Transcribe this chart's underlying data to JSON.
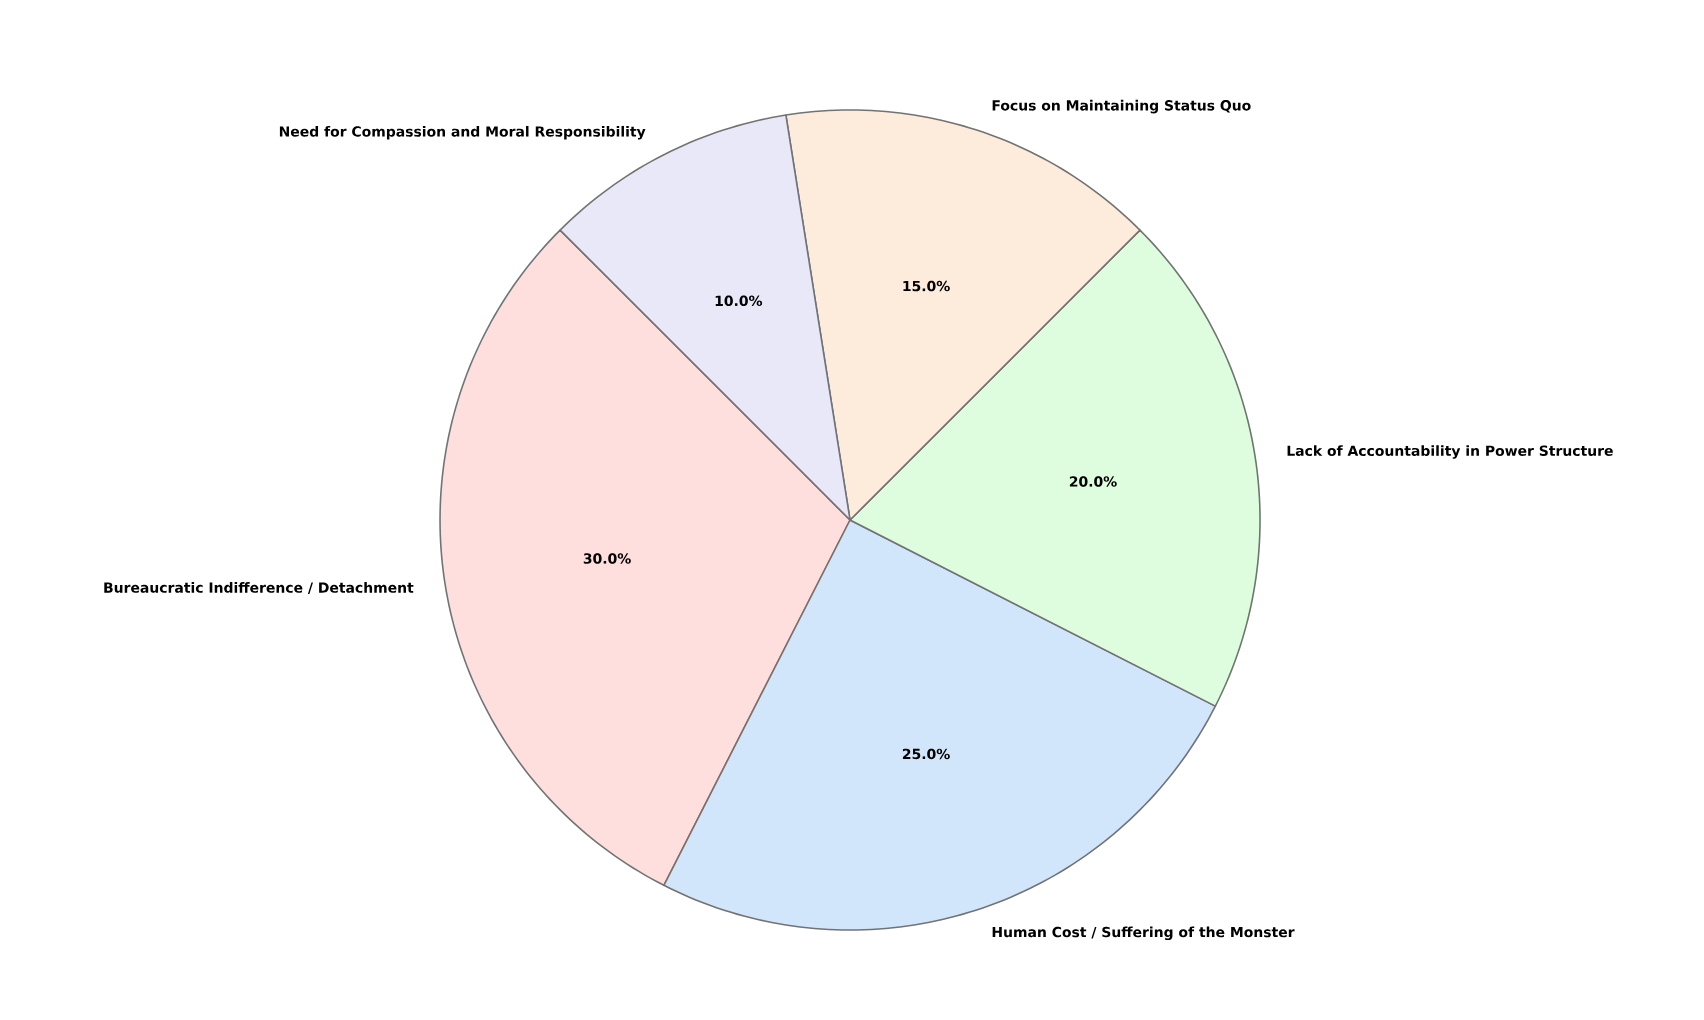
{
  "chart_data": {
    "type": "pie",
    "categories": [
      "Bureaucratic Indifference / Detachment",
      "Human Cost / Suffering of the Monster",
      "Lack of Accountability in Power Structure",
      "Focus on Maintaining Status Quo",
      "Need for Compassion and Moral Responsibility"
    ],
    "values": [
      30,
      25,
      20,
      15,
      10
    ],
    "value_labels": [
      "30.0%",
      "25.0%",
      "20.0%",
      "15.0%",
      "10.0%"
    ],
    "colors": [
      "#ffdede",
      "#d2e6fb",
      "#defcde",
      "#fdebdb",
      "#e8e8f8"
    ]
  }
}
